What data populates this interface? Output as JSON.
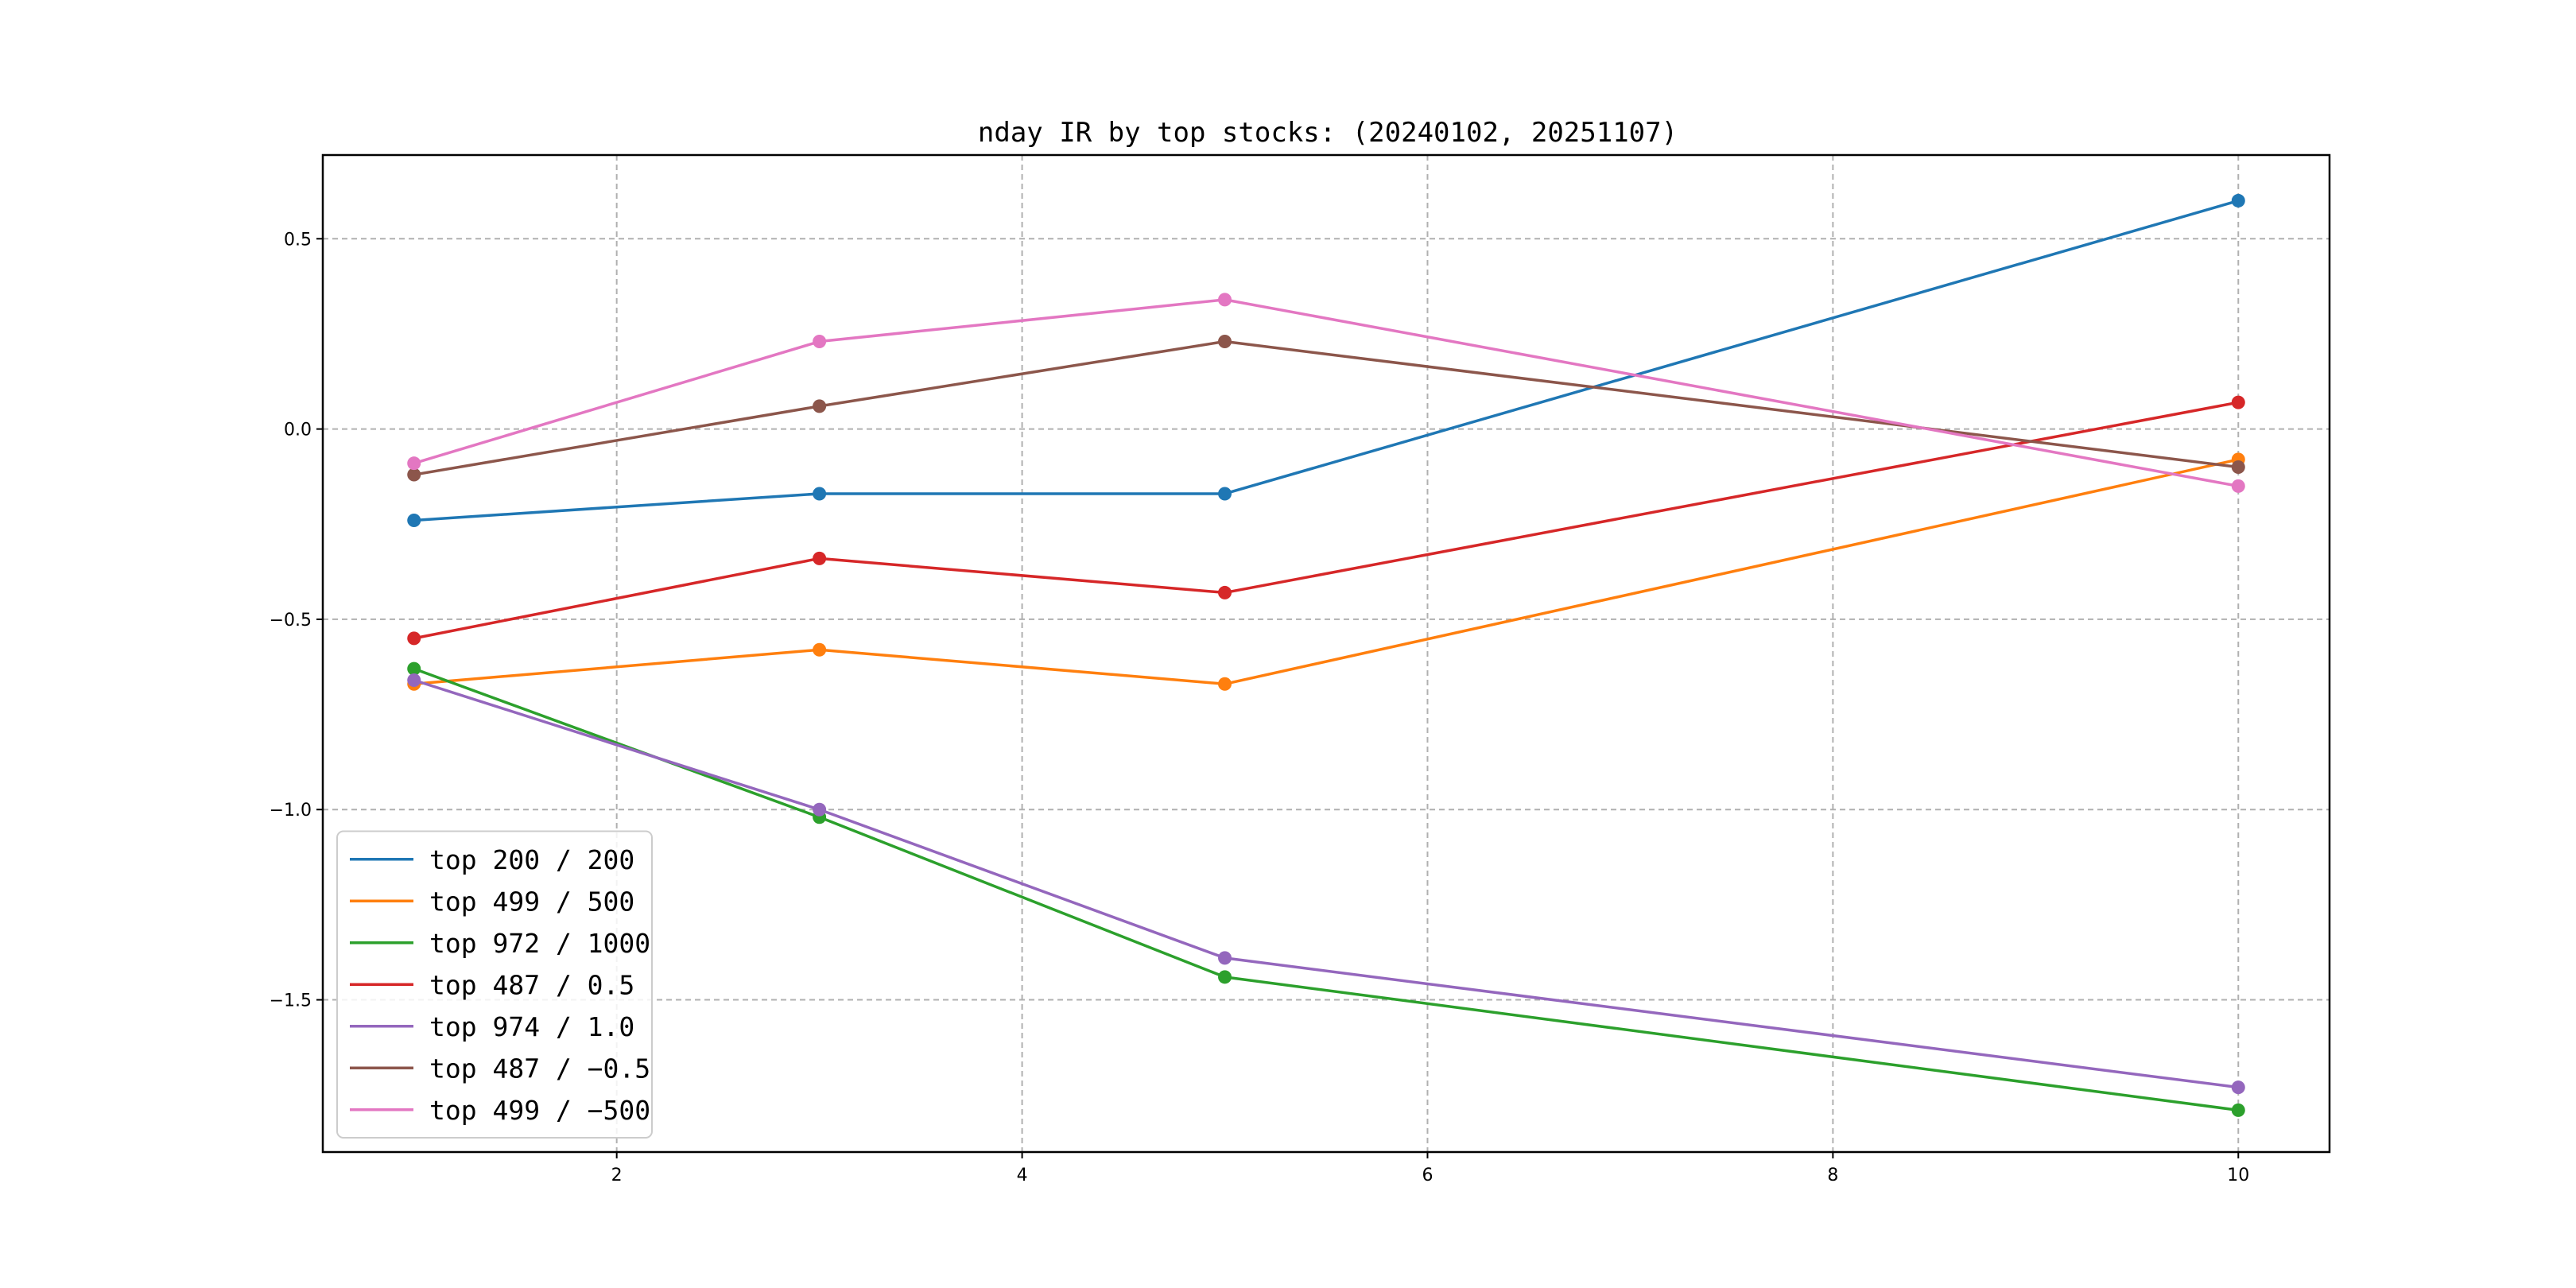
{
  "chart_data": {
    "type": "line",
    "title": "nday IR by top stocks: (20240102, 20251107)",
    "xlabel": "",
    "ylabel": "",
    "x": [
      1,
      3,
      5,
      10
    ],
    "xlim": [
      0.55,
      10.45
    ],
    "ylim": [
      -1.9,
      0.72
    ],
    "xticks": [
      2,
      4,
      6,
      8,
      10
    ],
    "xtick_labels": [
      "2",
      "4",
      "6",
      "8",
      "10"
    ],
    "yticks": [
      -1.5,
      -1.0,
      -0.5,
      0.0,
      0.5
    ],
    "ytick_labels": [
      "−1.5",
      "−1.0",
      "−0.5",
      "0.0",
      "0.5"
    ],
    "grid": true,
    "legend_position": "lower-left",
    "series": [
      {
        "name": "top 200 / 200",
        "color": "#1f77b4",
        "values": [
          -0.24,
          -0.17,
          -0.17,
          0.6
        ]
      },
      {
        "name": "top 499 / 500",
        "color": "#ff7f0e",
        "values": [
          -0.67,
          -0.58,
          -0.67,
          -0.08
        ]
      },
      {
        "name": "top 972 / 1000",
        "color": "#2ca02c",
        "values": [
          -0.63,
          -1.02,
          -1.44,
          -1.79
        ]
      },
      {
        "name": "top 487 / 0.5",
        "color": "#d62728",
        "values": [
          -0.55,
          -0.34,
          -0.43,
          0.07
        ]
      },
      {
        "name": "top 974 / 1.0",
        "color": "#9467bd",
        "values": [
          -0.66,
          -1.0,
          -1.39,
          -1.73
        ]
      },
      {
        "name": "top 487 / −0.5",
        "color": "#8c564b",
        "values": [
          -0.12,
          0.06,
          0.23,
          -0.1
        ]
      },
      {
        "name": "top 499 / −500",
        "color": "#e377c2",
        "values": [
          -0.09,
          0.23,
          0.34,
          -0.15
        ]
      }
    ]
  }
}
